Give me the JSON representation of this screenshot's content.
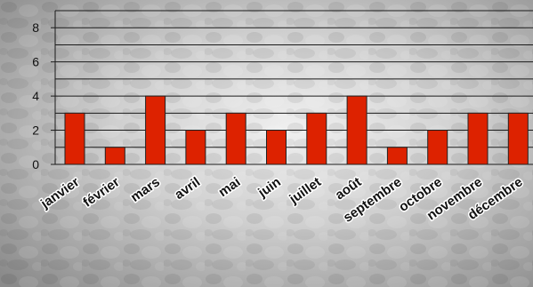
{
  "chart_data": {
    "type": "bar",
    "categories": [
      "janvier",
      "février",
      "mars",
      "avril",
      "mai",
      "juin",
      "juillet",
      "août",
      "septembre",
      "octobre",
      "novembre",
      "décembre"
    ],
    "values": [
      3,
      1,
      4,
      2,
      3,
      2,
      3,
      4,
      1,
      2,
      3,
      3
    ],
    "ylim": [
      0,
      9
    ],
    "yticks": [
      0,
      2,
      4,
      6,
      8
    ],
    "grid": true,
    "gridStep": 1,
    "legend": "none",
    "colors": {
      "bar": "#dd2200",
      "barStroke": "#222222",
      "grid": "#1a1a1a",
      "text": "#111111",
      "labelHalo": "#ffffff"
    }
  }
}
